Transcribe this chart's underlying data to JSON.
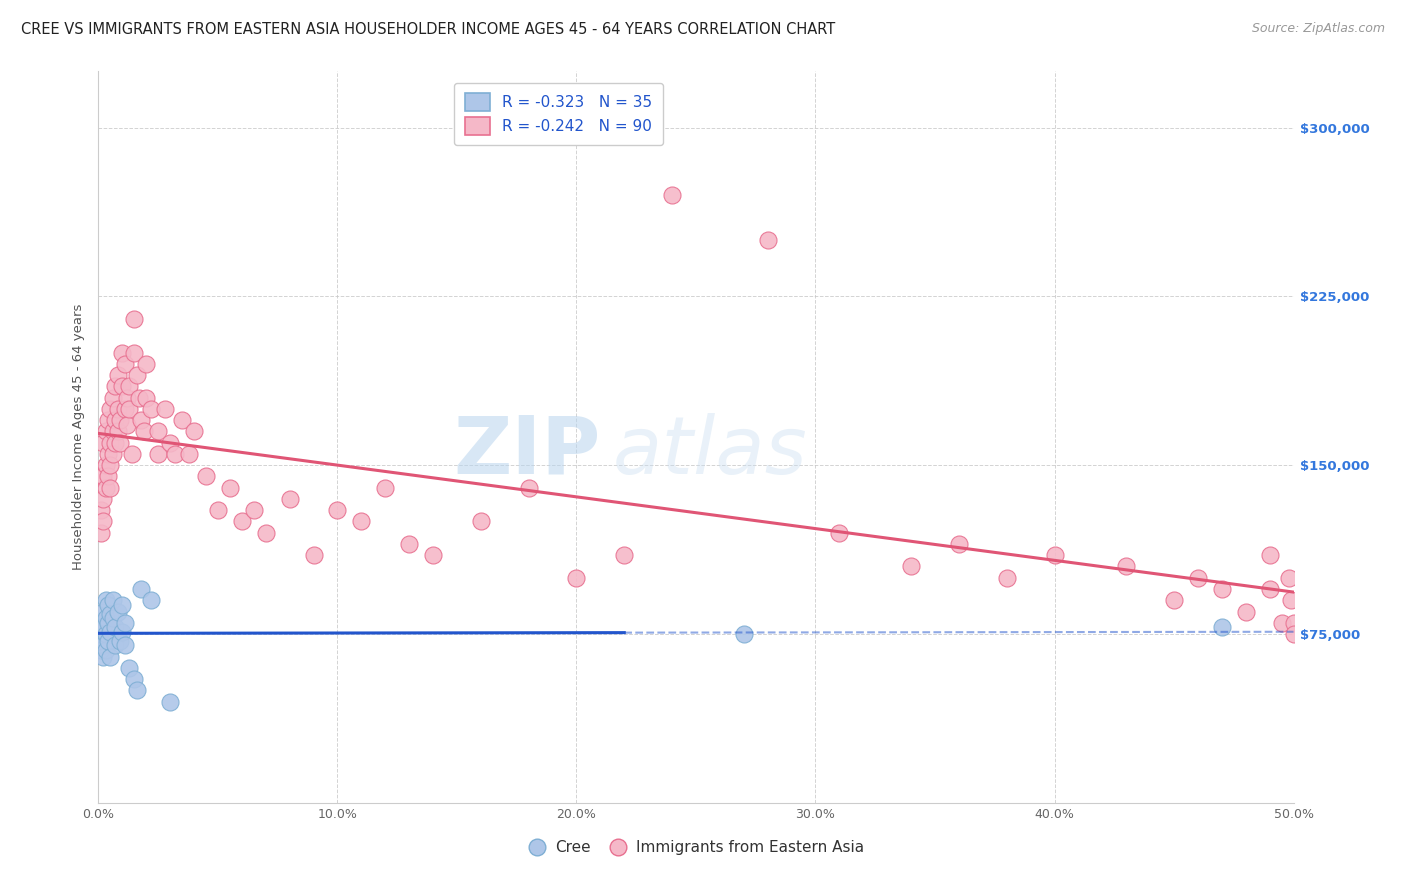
{
  "title": "CREE VS IMMIGRANTS FROM EASTERN ASIA HOUSEHOLDER INCOME AGES 45 - 64 YEARS CORRELATION CHART",
  "source": "Source: ZipAtlas.com",
  "ylabel": "Householder Income Ages 45 - 64 years",
  "xlim": [
    0.0,
    0.5
  ],
  "ylim": [
    0,
    325000
  ],
  "yticks": [
    0,
    75000,
    150000,
    225000,
    300000
  ],
  "ytick_labels_right": [
    "",
    "$75,000",
    "$150,000",
    "$225,000",
    "$300,000"
  ],
  "xticks": [
    0.0,
    0.1,
    0.2,
    0.3,
    0.4,
    0.5
  ],
  "xtick_labels": [
    "0.0%",
    "10.0%",
    "20.0%",
    "30.0%",
    "40.0%",
    "50.0%"
  ],
  "background_color": "#ffffff",
  "grid_color": "#c8c8c8",
  "watermark_text1": "ZIP",
  "watermark_text2": "atlas",
  "cree_color": "#aec6e8",
  "cree_edge_color": "#7fafd4",
  "immigrants_color": "#f5b8c8",
  "immigrants_edge_color": "#e87090",
  "cree_line_color": "#2255cc",
  "immigrants_line_color": "#e05575",
  "cree_r": -0.323,
  "cree_n": 35,
  "immigrants_r": -0.242,
  "immigrants_n": 90,
  "legend_r_color": "#2255cc",
  "cree_scatter_x": [
    0.001,
    0.001,
    0.001,
    0.002,
    0.002,
    0.002,
    0.002,
    0.003,
    0.003,
    0.003,
    0.003,
    0.004,
    0.004,
    0.004,
    0.005,
    0.005,
    0.005,
    0.006,
    0.006,
    0.007,
    0.007,
    0.008,
    0.009,
    0.01,
    0.01,
    0.011,
    0.011,
    0.013,
    0.015,
    0.016,
    0.018,
    0.022,
    0.03,
    0.27,
    0.47
  ],
  "cree_scatter_y": [
    80000,
    72000,
    68000,
    85000,
    78000,
    70000,
    65000,
    90000,
    82000,
    75000,
    68000,
    88000,
    80000,
    72000,
    84000,
    76000,
    65000,
    90000,
    82000,
    78000,
    70000,
    85000,
    72000,
    88000,
    76000,
    80000,
    70000,
    60000,
    55000,
    50000,
    95000,
    90000,
    45000,
    75000,
    78000
  ],
  "immigrants_scatter_x": [
    0.001,
    0.001,
    0.001,
    0.002,
    0.002,
    0.002,
    0.002,
    0.003,
    0.003,
    0.003,
    0.004,
    0.004,
    0.004,
    0.005,
    0.005,
    0.005,
    0.005,
    0.006,
    0.006,
    0.006,
    0.007,
    0.007,
    0.007,
    0.008,
    0.008,
    0.008,
    0.009,
    0.009,
    0.01,
    0.01,
    0.011,
    0.011,
    0.012,
    0.012,
    0.013,
    0.013,
    0.014,
    0.015,
    0.015,
    0.016,
    0.017,
    0.018,
    0.019,
    0.02,
    0.02,
    0.022,
    0.025,
    0.025,
    0.028,
    0.03,
    0.032,
    0.035,
    0.038,
    0.04,
    0.045,
    0.05,
    0.055,
    0.06,
    0.065,
    0.07,
    0.08,
    0.09,
    0.1,
    0.11,
    0.12,
    0.13,
    0.14,
    0.16,
    0.18,
    0.2,
    0.22,
    0.24,
    0.28,
    0.31,
    0.34,
    0.36,
    0.38,
    0.4,
    0.43,
    0.45,
    0.46,
    0.47,
    0.48,
    0.49,
    0.49,
    0.495,
    0.498,
    0.499,
    0.5,
    0.5
  ],
  "immigrants_scatter_y": [
    145000,
    130000,
    120000,
    160000,
    145000,
    135000,
    125000,
    165000,
    150000,
    140000,
    170000,
    155000,
    145000,
    175000,
    160000,
    150000,
    140000,
    180000,
    165000,
    155000,
    185000,
    170000,
    160000,
    190000,
    175000,
    165000,
    170000,
    160000,
    200000,
    185000,
    175000,
    195000,
    180000,
    168000,
    185000,
    175000,
    155000,
    215000,
    200000,
    190000,
    180000,
    170000,
    165000,
    195000,
    180000,
    175000,
    165000,
    155000,
    175000,
    160000,
    155000,
    170000,
    155000,
    165000,
    145000,
    130000,
    140000,
    125000,
    130000,
    120000,
    135000,
    110000,
    130000,
    125000,
    140000,
    115000,
    110000,
    125000,
    140000,
    100000,
    110000,
    270000,
    250000,
    120000,
    105000,
    115000,
    100000,
    110000,
    105000,
    90000,
    100000,
    95000,
    85000,
    110000,
    95000,
    80000,
    100000,
    90000,
    80000,
    75000
  ]
}
